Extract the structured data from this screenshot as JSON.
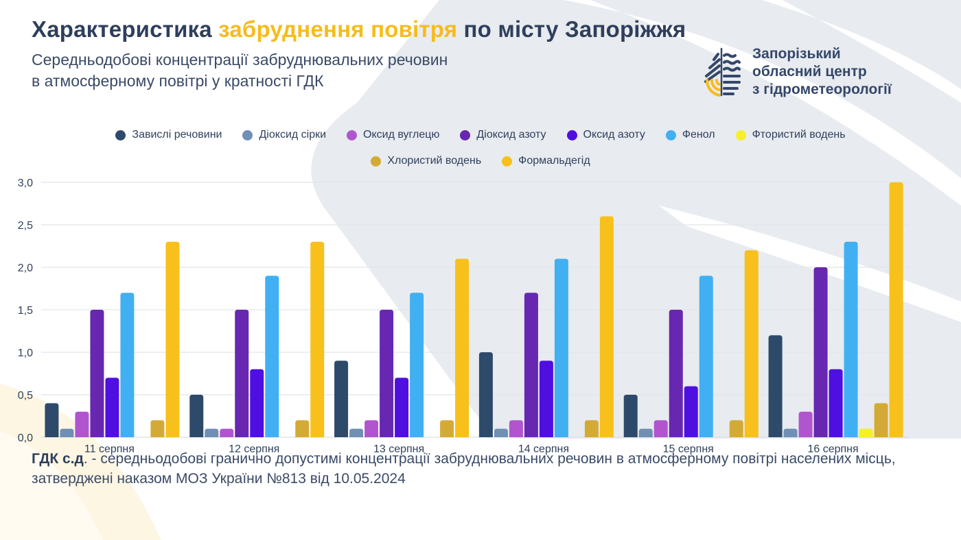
{
  "header": {
    "title_part1": "Характеристика ",
    "title_accent": "забруднення повітря",
    "title_part2": " по місту Запоріжжя",
    "subtitle_line1": "Середньодобові концентрації забруднювальних речовин",
    "subtitle_line2": "в атмосферному повітрі у кратності ГДК"
  },
  "logo": {
    "icon": "water-drop-leaf-logo",
    "line1": "Запорізький",
    "line2": "обласний центр",
    "line3": "з гідрометеорології"
  },
  "colors": {
    "title": "#2e3f5c",
    "accent": "#f6bc1b",
    "background_shape": "#e8ebef",
    "background_warm": "#fdf6e3"
  },
  "footnote": {
    "term": "ГДК с.д",
    "text": ". - середньодобові гранично допустимі концентрації забруднювальних речовин в атмосферному повітрі населених місць, затверджені наказом МОЗ України №813 від 10.05.2024"
  },
  "chart_data": {
    "type": "bar",
    "title": "",
    "xlabel": "",
    "ylabel": "",
    "ylim": [
      0,
      3.0
    ],
    "yticks": [
      "0,0",
      "0,5",
      "1,0",
      "1,5",
      "2,0",
      "2,5",
      "3,0"
    ],
    "ytick_values": [
      0,
      0.5,
      1.0,
      1.5,
      2.0,
      2.5,
      3.0
    ],
    "grid": true,
    "legend_position": "top-center",
    "categories": [
      "11 серпня",
      "12 серпня",
      "13 серпня",
      "14 серпня",
      "15 серпня",
      "16 серпня"
    ],
    "series": [
      {
        "name": "Завислі речовини",
        "color": "#2e4a6b",
        "values": [
          0.4,
          0.5,
          0.9,
          1.0,
          0.5,
          1.2
        ]
      },
      {
        "name": "Діоксид сірки",
        "color": "#6f8fb5",
        "values": [
          0.1,
          0.1,
          0.1,
          0.1,
          0.1,
          0.1
        ]
      },
      {
        "name": "Оксид вуглецю",
        "color": "#b155cf",
        "values": [
          0.3,
          0.1,
          0.2,
          0.2,
          0.2,
          0.3
        ]
      },
      {
        "name": "Діоксид азоту",
        "color": "#6727b0",
        "values": [
          1.5,
          1.5,
          1.5,
          1.7,
          1.5,
          2.0
        ]
      },
      {
        "name": "Оксид азоту",
        "color": "#4f0fe0",
        "values": [
          0.7,
          0.8,
          0.7,
          0.9,
          0.6,
          0.8
        ]
      },
      {
        "name": "Фенол",
        "color": "#41b0f2",
        "values": [
          1.7,
          1.9,
          1.7,
          2.1,
          1.9,
          2.3
        ]
      },
      {
        "name": "Фтористий водень",
        "color": "#f5f02a",
        "values": [
          0,
          0,
          0,
          0,
          0,
          0.1
        ]
      },
      {
        "name": "Хлористий водень",
        "color": "#d4aa37",
        "values": [
          0.2,
          0.2,
          0.2,
          0.2,
          0.2,
          0.4
        ]
      },
      {
        "name": "Формальдегід",
        "color": "#f8c01b",
        "values": [
          2.3,
          2.3,
          2.1,
          2.6,
          2.2,
          3.0
        ]
      }
    ]
  }
}
